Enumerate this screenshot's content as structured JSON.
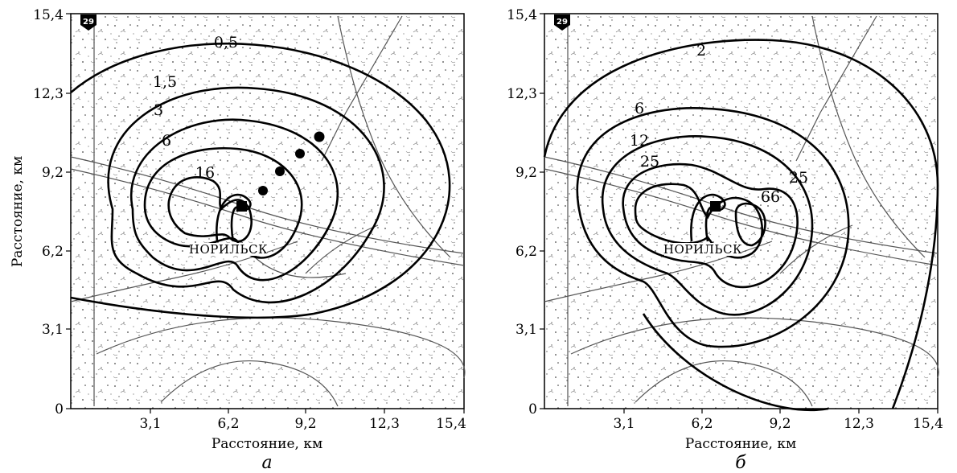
{
  "y_axis_title": "Расстояние, км",
  "panels": [
    {
      "letter": "а",
      "x_title": "Расстояние, км",
      "x_ticks": [
        "3,1",
        "6,2",
        "9,2",
        "12,3",
        "15,4"
      ],
      "y_ticks": [
        "0",
        "3,1",
        "6,2",
        "9,2",
        "12,3",
        "15,4"
      ],
      "marker_number": "29",
      "city_label": "НОРИЛЬСК",
      "contour_labels": [
        "0,5",
        "1,5",
        "3",
        "6",
        "16"
      ]
    },
    {
      "letter": "б",
      "x_title": "Расстояние, км",
      "x_ticks": [
        "3,1",
        "6,2",
        "9,2",
        "12,3",
        "15,4"
      ],
      "y_ticks": [
        "0",
        "3,1",
        "6,2",
        "9,2",
        "12,3",
        "15,4"
      ],
      "marker_number": "29",
      "city_label": "НОРИЛЬСК",
      "contour_labels": [
        "2",
        "6",
        "12",
        "25",
        "25",
        "66"
      ]
    }
  ]
}
